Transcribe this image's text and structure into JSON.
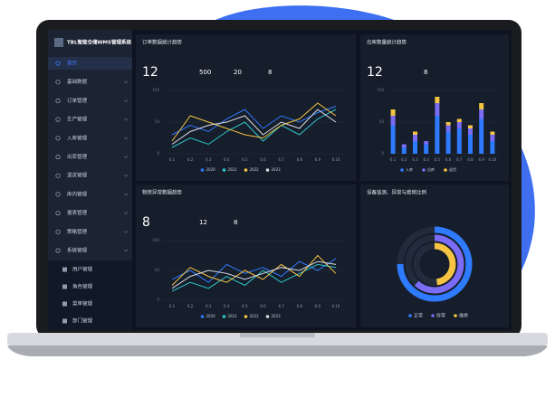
{
  "sidebar": {
    "title": "TBL智能仓储WMS管理系统",
    "menu": [
      "首页",
      "基础数据",
      "订单管理",
      "生产管理",
      "入库管理",
      "出库管理",
      "退货管理",
      "库内管理",
      "报表管理",
      "策略管理",
      "系统管理"
    ],
    "submenu": [
      "用户管理",
      "角色管理",
      "菜单管理",
      "部门管理"
    ]
  },
  "chart_data": [
    {
      "type": "line",
      "title": "订单数据统计趋势",
      "kpis": [
        12,
        500,
        20,
        8
      ],
      "categories": [
        "6.1",
        "6.2",
        "6.3",
        "6.4",
        "6.5",
        "6.6",
        "6.7",
        "6.8",
        "6.9",
        "6.10"
      ],
      "ylim": [
        0,
        100
      ],
      "yticks": [
        0,
        50,
        100
      ],
      "series": [
        {
          "name": "2020",
          "color": "#2f7bff",
          "values": [
            30,
            45,
            35,
            55,
            70,
            40,
            60,
            50,
            65,
            75
          ]
        },
        {
          "name": "2021",
          "color": "#2ec7c9",
          "values": [
            10,
            25,
            15,
            35,
            50,
            20,
            45,
            30,
            55,
            70
          ]
        },
        {
          "name": "2022",
          "color": "#f5c542",
          "values": [
            20,
            60,
            50,
            40,
            30,
            25,
            45,
            55,
            80,
            60
          ]
        },
        {
          "name": "2023",
          "color": "#d9dde6",
          "values": [
            15,
            35,
            45,
            50,
            60,
            30,
            50,
            40,
            70,
            50
          ]
        }
      ]
    },
    {
      "type": "bar",
      "title": "出库数量统计趋势",
      "kpis": [
        12,
        8
      ],
      "categories": [
        "6.1",
        "6.2",
        "6.3",
        "6.4",
        "6.5",
        "6.6",
        "6.7",
        "6.8",
        "6.9",
        "6.10"
      ],
      "ylim": [
        0,
        100
      ],
      "yticks": [
        0,
        50,
        100
      ],
      "series": [
        {
          "name": "入库",
          "color": "#2f7bff",
          "values": [
            45,
            10,
            20,
            15,
            60,
            35,
            40,
            30,
            55,
            20
          ]
        },
        {
          "name": "出库",
          "color": "#7b6cf6",
          "values": [
            15,
            5,
            10,
            5,
            20,
            10,
            10,
            10,
            15,
            10
          ]
        },
        {
          "name": "退货",
          "color": "#f5c542",
          "values": [
            10,
            0,
            5,
            0,
            10,
            5,
            5,
            5,
            10,
            5
          ]
        }
      ]
    },
    {
      "type": "line",
      "title": "物资异常数据趋势",
      "kpis": [
        8,
        12,
        8
      ],
      "categories": [
        "6.1",
        "6.2",
        "6.3",
        "6.4",
        "6.5",
        "6.6",
        "6.7",
        "6.8",
        "6.9",
        "6.10"
      ],
      "ylim": [
        0,
        100
      ],
      "yticks": [
        0,
        50,
        100
      ],
      "series": [
        {
          "name": "2020",
          "color": "#2f7bff",
          "values": [
            35,
            50,
            30,
            60,
            45,
            55,
            40,
            65,
            50,
            70
          ]
        },
        {
          "name": "2021",
          "color": "#2ec7c9",
          "values": [
            15,
            30,
            20,
            40,
            25,
            50,
            30,
            45,
            60,
            55
          ]
        },
        {
          "name": "2022",
          "color": "#f5c542",
          "values": [
            25,
            55,
            40,
            30,
            50,
            35,
            60,
            40,
            75,
            45
          ]
        },
        {
          "name": "2023",
          "color": "#d9dde6",
          "values": [
            20,
            40,
            50,
            45,
            35,
            45,
            55,
            50,
            65,
            60
          ]
        }
      ]
    },
    {
      "type": "radial",
      "title": "设备监测、异常与维修比例",
      "categories": [
        "正常",
        "异常",
        "维修"
      ],
      "values": [
        75,
        62,
        48
      ],
      "colors": [
        "#2f7bff",
        "#7b6cf6",
        "#f5c542"
      ]
    }
  ]
}
